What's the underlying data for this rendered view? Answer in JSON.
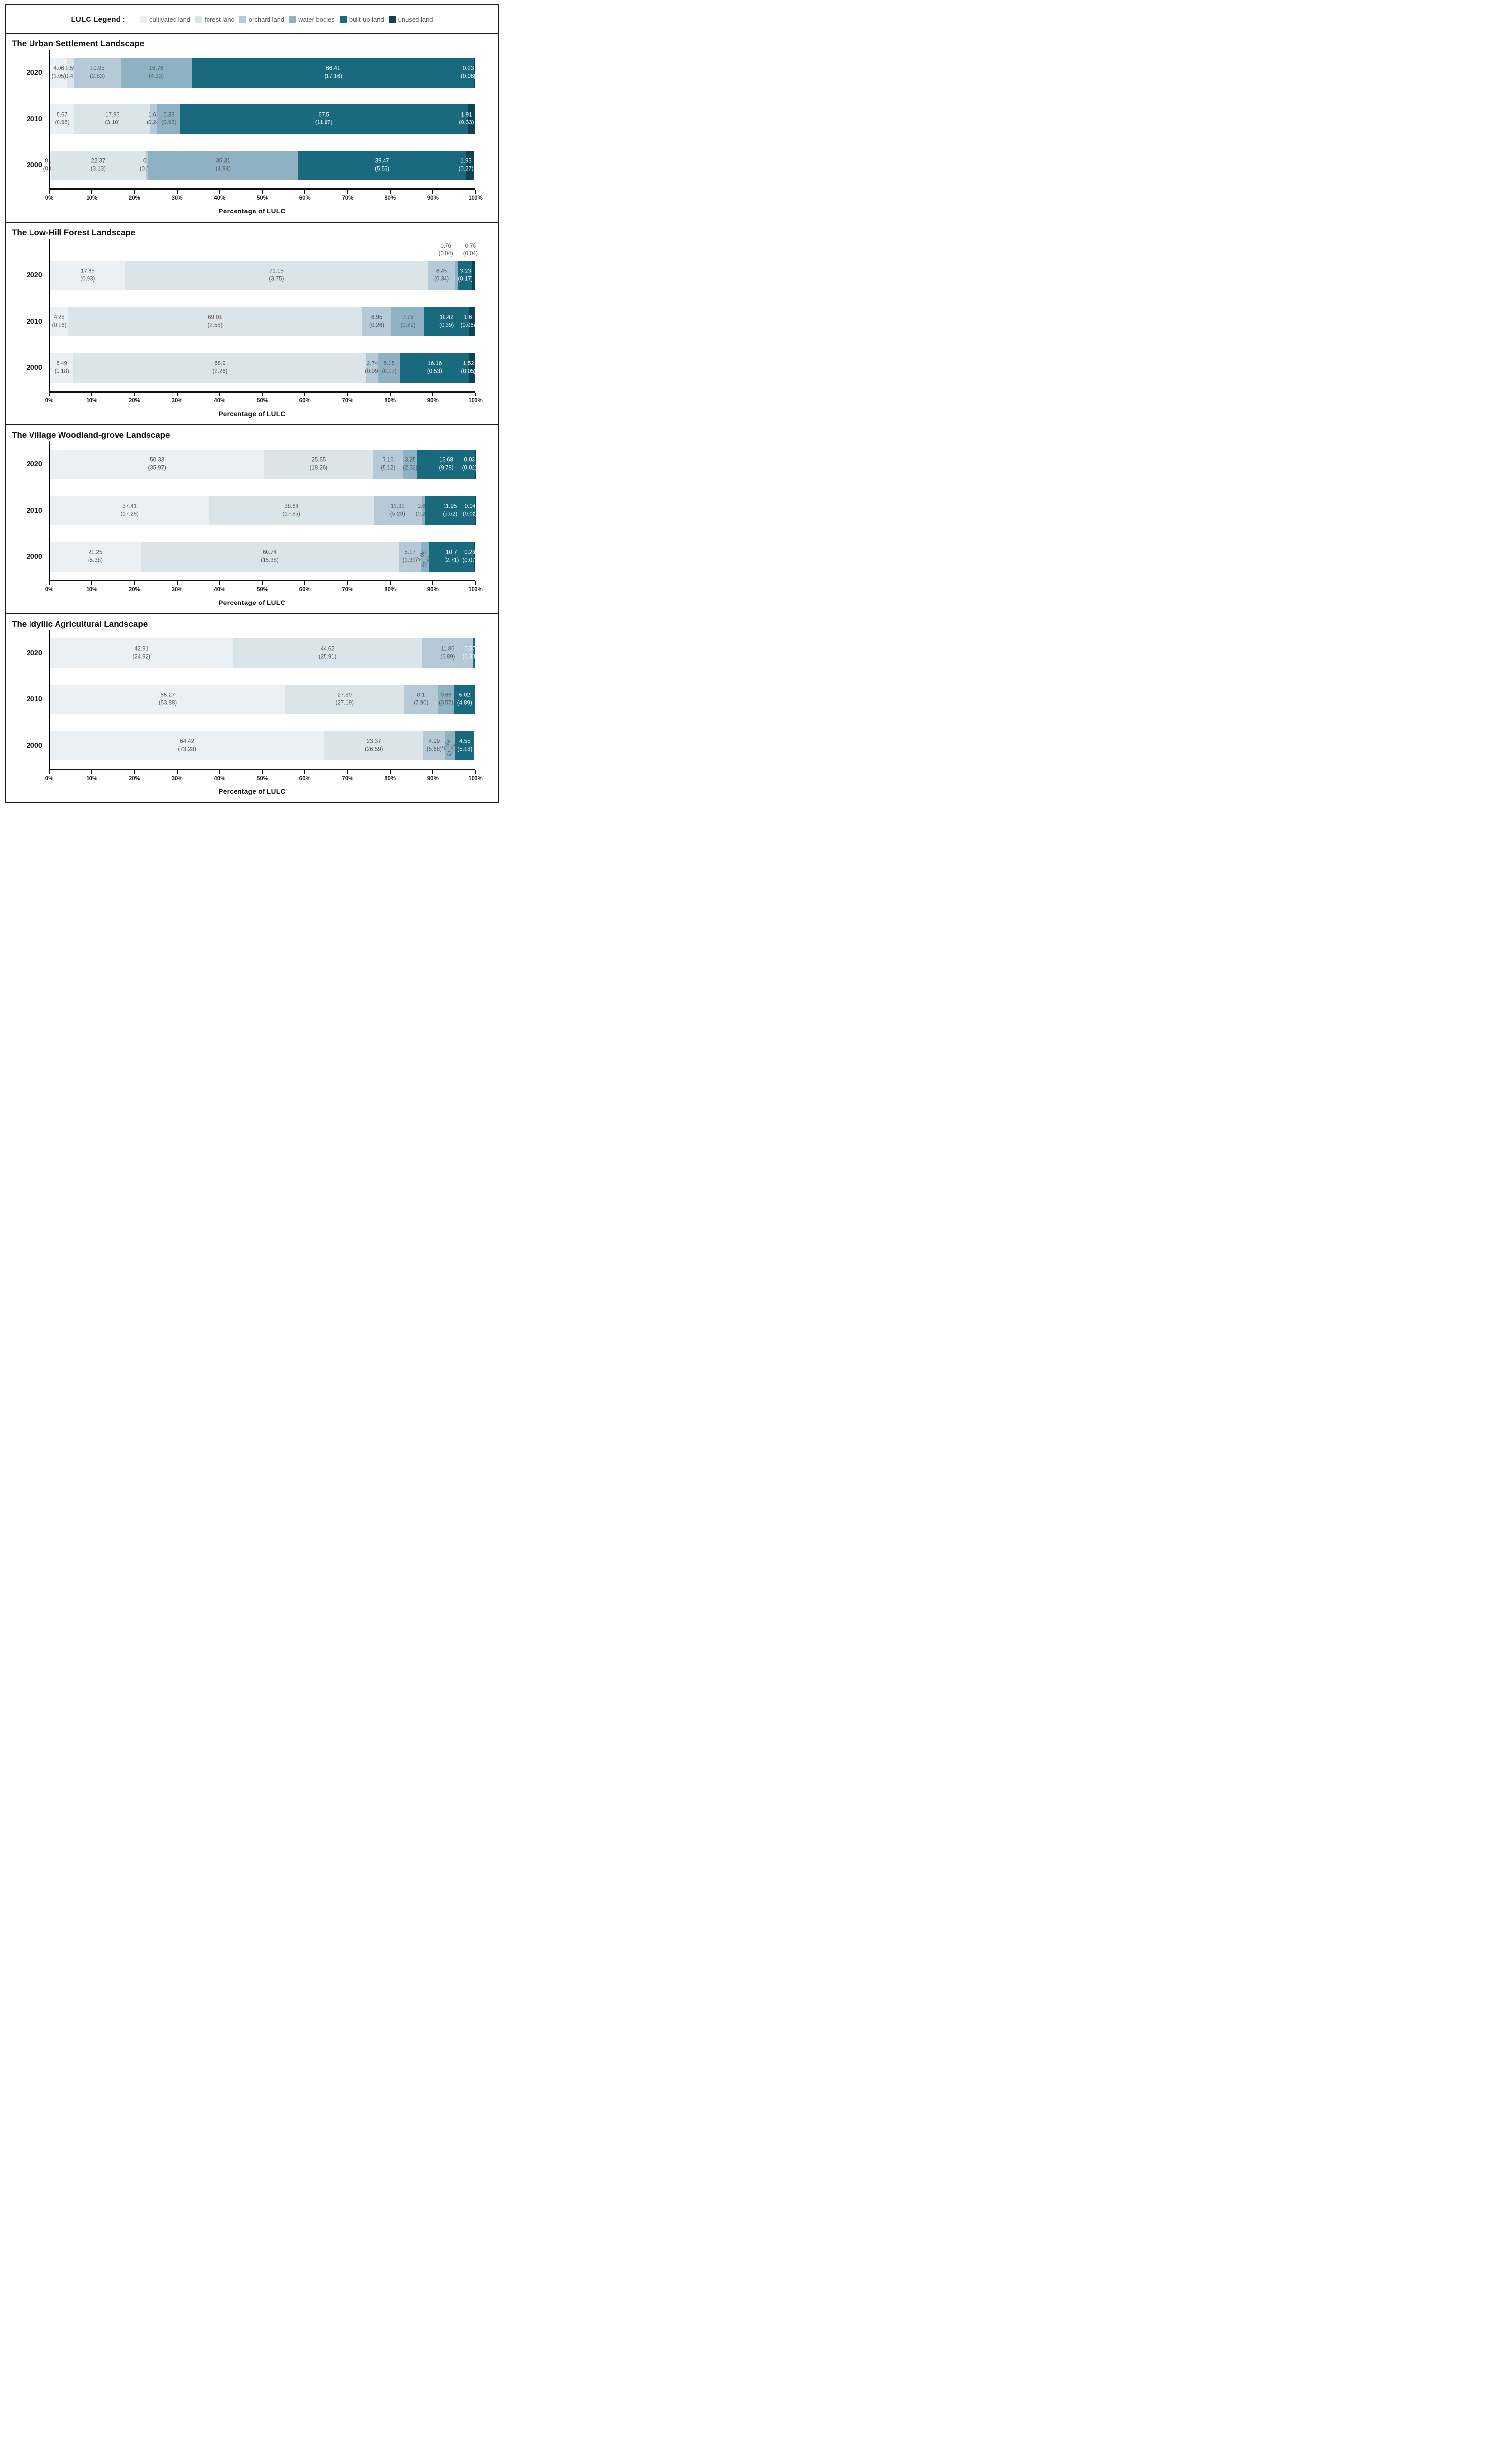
{
  "legend": {
    "title": "LULC  Legend :",
    "items": [
      {
        "key": "cultivated",
        "label": "cultivated land",
        "color": "#eaf0f4"
      },
      {
        "key": "forest",
        "label": "forest land",
        "color": "#dbe5e9"
      },
      {
        "key": "orchard",
        "label": "orchard land",
        "color": "#b5cad6"
      },
      {
        "key": "water",
        "label": "water bodies",
        "color": "#8eb2c3"
      },
      {
        "key": "built_up",
        "label": "built-up land",
        "color": "#19697f"
      },
      {
        "key": "unused",
        "label": "unused land",
        "color": "#0e4356"
      }
    ]
  },
  "colors": {
    "cultivated": "#eaf0f4",
    "forest": "#dbe5e9",
    "orchard": "#b5cad6",
    "water": "#8eb2c3",
    "built_up": "#19697f",
    "unused": "#0e4356"
  },
  "axis": {
    "ticks": [
      "0%",
      "10%",
      "20%",
      "30%",
      "40%",
      "50%",
      "60%",
      "70%",
      "80%",
      "90%",
      "100%"
    ],
    "xlabel": "Percentage of LULC",
    "xlim": [
      0,
      100
    ]
  },
  "chart_data": [
    {
      "type": "bar",
      "stacked": true,
      "orientation": "horizontal",
      "title": "The Urban Settlement Landscape",
      "xlabel": "Percentage of LULC",
      "xlim": [
        0,
        100
      ],
      "categories": [
        "2020",
        "2010",
        "2000"
      ],
      "rows": [
        {
          "year": "2020",
          "segments": [
            {
              "key": "cultivated",
              "pct": 4.06,
              "label": "4.06",
              "area": "(1.05)"
            },
            {
              "key": "forest",
              "pct": 1.59,
              "label": "1.59",
              "area": "(0.41)"
            },
            {
              "key": "orchard",
              "pct": 10.95,
              "label": "10.95",
              "area": "(2.83)"
            },
            {
              "key": "water",
              "pct": 16.76,
              "label": "16.76",
              "area": "(4.33)"
            },
            {
              "key": "built_up",
              "pct": 66.41,
              "label": "66.41",
              "area": "(17.16)",
              "white": true
            },
            {
              "key": "unused",
              "pct": 0.23,
              "label": "0.23",
              "area": "(0.06)",
              "white": true,
              "shift": -1.6
            }
          ]
        },
        {
          "year": "2010",
          "segments": [
            {
              "key": "cultivated",
              "pct": 5.67,
              "label": "5.67",
              "area": "(0.98)"
            },
            {
              "key": "forest",
              "pct": 17.93,
              "label": "17.93",
              "area": "(3.10)"
            },
            {
              "key": "orchard",
              "pct": 1.62,
              "label": "1.62",
              "area": "(0.28)"
            },
            {
              "key": "water",
              "pct": 5.38,
              "label": "5.38",
              "area": "(0.93)"
            },
            {
              "key": "built_up",
              "pct": 67.5,
              "label": "67.5",
              "area": "(11.67)",
              "white": true
            },
            {
              "key": "unused",
              "pct": 1.91,
              "label": "1.91",
              "area": "(0.33)",
              "white": true,
              "shift": -1.2
            }
          ]
        },
        {
          "year": "2000",
          "segments": [
            {
              "key": "cultivated",
              "pct": 0.14,
              "label": "0.14",
              "area": "(0.02)"
            },
            {
              "key": "forest",
              "pct": 22.37,
              "label": "22.37",
              "area": "(3.13)"
            },
            {
              "key": "orchard",
              "pct": 0.5,
              "label": "0.5",
              "area": "(0.07)"
            },
            {
              "key": "water",
              "pct": 35.31,
              "label": "35.31",
              "area": "(4.94)"
            },
            {
              "key": "built_up",
              "pct": 39.47,
              "label": "39.47",
              "area": "(5.56)",
              "white": true
            },
            {
              "key": "unused",
              "pct": 1.93,
              "label": "1.93",
              "area": "(0.27)",
              "white": true,
              "shift": -1.0
            }
          ]
        }
      ]
    },
    {
      "type": "bar",
      "stacked": true,
      "orientation": "horizontal",
      "title": "The Low-Hill Forest Landscape",
      "xlabel": "Percentage of LULC",
      "xlim": [
        0,
        100
      ],
      "categories": [
        "2020",
        "2010",
        "2000"
      ],
      "rows": [
        {
          "year": "2020",
          "segments": [
            {
              "key": "cultivated",
              "pct": 17.65,
              "label": "17.65",
              "area": "(0.93)"
            },
            {
              "key": "forest",
              "pct": 71.15,
              "label": "71.15",
              "area": "(3.75)"
            },
            {
              "key": "orchard",
              "pct": 6.45,
              "label": "6.45",
              "area": "(0.34)"
            },
            {
              "key": "water",
              "pct": 0.76,
              "label": "0.76",
              "area": "(0.04)",
              "label_pos": "above",
              "shift": -2.6
            },
            {
              "key": "built_up",
              "pct": 3.23,
              "label": "3.23",
              "area": "(0.17)",
              "white": true
            },
            {
              "key": "unused",
              "pct": 0.76,
              "label": "0.76",
              "area": "(0.04)",
              "label_pos": "above",
              "shift": -0.8
            }
          ]
        },
        {
          "year": "2010",
          "segments": [
            {
              "key": "cultivated",
              "pct": 4.28,
              "label": "4.28",
              "area": "(0.16)"
            },
            {
              "key": "forest",
              "pct": 69.01,
              "label": "69.01",
              "area": "(2.58)"
            },
            {
              "key": "orchard",
              "pct": 6.95,
              "label": "6.95",
              "area": "(0.26)"
            },
            {
              "key": "water",
              "pct": 7.75,
              "label": "7.75",
              "area": "(0.29)"
            },
            {
              "key": "built_up",
              "pct": 10.42,
              "label": "10.42",
              "area": "(0.39)",
              "white": true
            },
            {
              "key": "unused",
              "pct": 1.6,
              "label": "1.6",
              "area": "(0.06)",
              "white": true,
              "shift": -1.0
            }
          ]
        },
        {
          "year": "2000",
          "segments": [
            {
              "key": "cultivated",
              "pct": 5.49,
              "label": "5.49",
              "area": "(0.18)"
            },
            {
              "key": "forest",
              "pct": 68.9,
              "label": "68.9",
              "area": "(2.26)"
            },
            {
              "key": "orchard",
              "pct": 2.74,
              "label": "2.74",
              "area": "(0.09)"
            },
            {
              "key": "water",
              "pct": 5.18,
              "label": "5.18",
              "area": "(0.17)"
            },
            {
              "key": "built_up",
              "pct": 16.16,
              "label": "16.16",
              "area": "(0.53)",
              "white": true
            },
            {
              "key": "unused",
              "pct": 1.52,
              "label": "1.52",
              "area": "(0.05)",
              "white": true,
              "shift": -0.9
            }
          ]
        }
      ]
    },
    {
      "type": "bar",
      "stacked": true,
      "orientation": "horizontal",
      "title": "The Village Woodland-grove Landscape",
      "xlabel": "Percentage of LULC",
      "xlim": [
        0,
        100
      ],
      "categories": [
        "2020",
        "2010",
        "2000"
      ],
      "rows": [
        {
          "year": "2020",
          "segments": [
            {
              "key": "cultivated",
              "pct": 50.33,
              "label": "50.33",
              "area": "(35.97)"
            },
            {
              "key": "forest",
              "pct": 25.55,
              "label": "25.55",
              "area": "(18.26)"
            },
            {
              "key": "orchard",
              "pct": 7.16,
              "label": "7.16",
              "area": "(5.12)"
            },
            {
              "key": "water",
              "pct": 3.25,
              "label": "3.25",
              "area": "(2.32)"
            },
            {
              "key": "built_up",
              "pct": 13.68,
              "label": "13.68",
              "area": "(9.78)",
              "white": true
            },
            {
              "key": "unused",
              "pct": 0.03,
              "label": "0.03",
              "area": "(0.02)",
              "white": true,
              "shift": -1.4
            }
          ]
        },
        {
          "year": "2010",
          "segments": [
            {
              "key": "cultivated",
              "pct": 37.41,
              "label": "37.41",
              "area": "(17.28)"
            },
            {
              "key": "forest",
              "pct": 38.64,
              "label": "38.64",
              "area": "(17.85)"
            },
            {
              "key": "orchard",
              "pct": 11.32,
              "label": "11.32",
              "area": "(5.23)"
            },
            {
              "key": "water",
              "pct": 0.68,
              "label": "0.68",
              "area": "(0.29)"
            },
            {
              "key": "built_up",
              "pct": 11.95,
              "label": "11.95",
              "area": "(5.52)",
              "white": true
            },
            {
              "key": "unused",
              "pct": 0.04,
              "label": "0.04",
              "area": "(0.02)",
              "white": true,
              "shift": -1.3
            }
          ]
        },
        {
          "year": "2000",
          "segments": [
            {
              "key": "cultivated",
              "pct": 21.25,
              "label": "21.25",
              "area": "(5.38)"
            },
            {
              "key": "forest",
              "pct": 60.74,
              "label": "60.74",
              "area": "(15.38)"
            },
            {
              "key": "orchard",
              "pct": 5.17,
              "label": "5.17",
              "area": "(1.31)"
            },
            {
              "key": "water",
              "pct": 1.86,
              "label": "1.86",
              "area": "(0.47)",
              "label_pos": "diag"
            },
            {
              "key": "built_up",
              "pct": 10.7,
              "label": "10.7",
              "area": "(2.71)",
              "white": true
            },
            {
              "key": "unused",
              "pct": 0.28,
              "label": "0.28",
              "area": "(0.07)",
              "white": true,
              "shift": -1.2
            }
          ]
        }
      ]
    },
    {
      "type": "bar",
      "stacked": true,
      "orientation": "horizontal",
      "title": "The Idyllic Agricultural Landscape",
      "xlabel": "Percentage of LULC",
      "xlim": [
        0,
        100
      ],
      "categories": [
        "2020",
        "2010",
        "2000"
      ],
      "rows": [
        {
          "year": "2020",
          "segments": [
            {
              "key": "cultivated",
              "pct": 42.91,
              "label": "42.91",
              "area": "(24.92)"
            },
            {
              "key": "forest",
              "pct": 44.62,
              "label": "44.62",
              "area": "(25.91)"
            },
            {
              "key": "orchard",
              "pct": 11.86,
              "label": "11.86",
              "area": "(6.89)"
            },
            {
              "key": "built_up",
              "pct": 0.57,
              "label": "0.57",
              "area": "(0.33)",
              "white": true,
              "shift": -1.0
            }
          ]
        },
        {
          "year": "2010",
          "segments": [
            {
              "key": "cultivated",
              "pct": 55.27,
              "label": "55.27",
              "area": "(53.88)"
            },
            {
              "key": "forest",
              "pct": 27.89,
              "label": "27.89",
              "area": "(27.19)"
            },
            {
              "key": "orchard",
              "pct": 8.1,
              "label": "8.1",
              "area": "(7.90)"
            },
            {
              "key": "water",
              "pct": 3.66,
              "label": "3.66",
              "area": "(3.57)"
            },
            {
              "key": "built_up",
              "pct": 5.02,
              "label": "5.02",
              "area": "(4.89)",
              "white": true
            }
          ]
        },
        {
          "year": "2000",
          "segments": [
            {
              "key": "cultivated",
              "pct": 64.42,
              "label": "64.42",
              "area": "(73.28)"
            },
            {
              "key": "forest",
              "pct": 23.37,
              "label": "23.37",
              "area": "(26.59)"
            },
            {
              "key": "orchard",
              "pct": 4.99,
              "label": "4.99",
              "area": "(5.68)"
            },
            {
              "key": "water",
              "pct": 2.44,
              "label": "2.44",
              "area": "(2.77)",
              "label_pos": "diag"
            },
            {
              "key": "built_up",
              "pct": 4.55,
              "label": "4.55",
              "area": "(5.18)",
              "white": true
            }
          ]
        }
      ]
    }
  ]
}
